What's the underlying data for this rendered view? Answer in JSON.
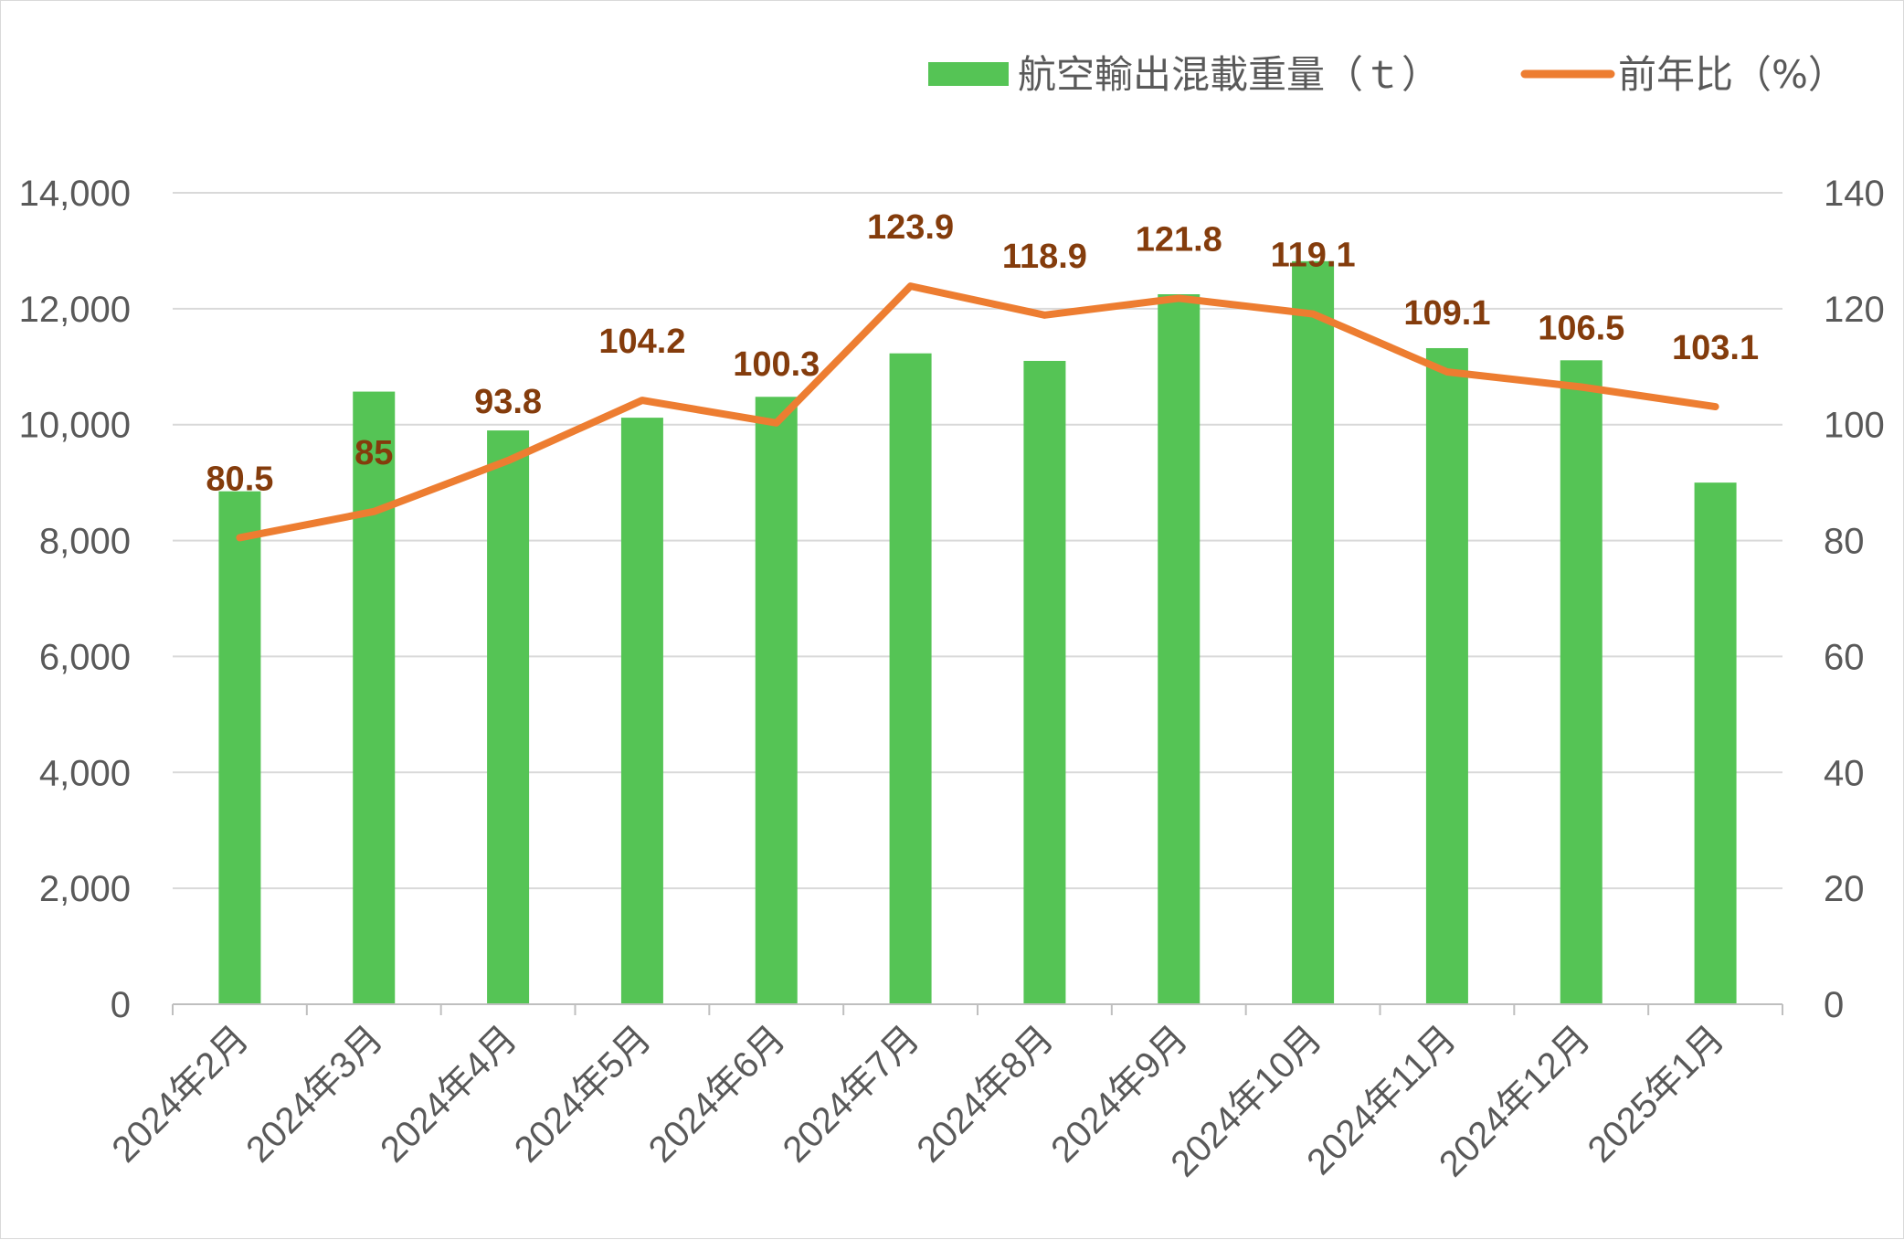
{
  "chart_data": {
    "type": "bar",
    "categories": [
      "2024年2月",
      "2024年3月",
      "2024年4月",
      "2024年5月",
      "2024年6月",
      "2024年7月",
      "2024年8月",
      "2024年9月",
      "2024年10月",
      "2024年11月",
      "2024年12月",
      "2025年1月"
    ],
    "series": [
      {
        "name": "航空輸出混載重量（ｔ）",
        "type": "bar",
        "axis": "left",
        "color": "#55c455",
        "values": [
          8850,
          10570,
          9900,
          10120,
          10480,
          11230,
          11100,
          12250,
          12820,
          11320,
          11110,
          9000
        ]
      },
      {
        "name": "前年比（%）",
        "type": "line",
        "axis": "right",
        "color": "#ed7d31",
        "label_color": "#843c0c",
        "values": [
          80.5,
          85,
          93.8,
          104.2,
          100.3,
          123.9,
          118.9,
          121.8,
          119.1,
          109.1,
          106.5,
          103.1
        ],
        "labels": [
          "80.5",
          "85",
          "93.8",
          "104.2",
          "100.3",
          "123.9",
          "118.9",
          "121.8",
          "119.1",
          "109.1",
          "106.5",
          "103.1"
        ]
      }
    ],
    "y_left": {
      "ylim": [
        0,
        14000
      ],
      "ticks": [
        "0",
        "2,000",
        "4,000",
        "6,000",
        "8,000",
        "10,000",
        "12,000",
        "14,000"
      ]
    },
    "y_right": {
      "ylim": [
        0,
        140
      ],
      "ticks": [
        "0",
        "20",
        "40",
        "60",
        "80",
        "100",
        "120",
        "140"
      ]
    },
    "grid": true,
    "legend_position": "top-right"
  }
}
